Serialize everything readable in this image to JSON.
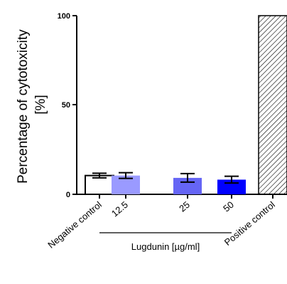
{
  "chart_data": {
    "type": "bar",
    "ylabel_lines": [
      "Percentage of cytotoxicity",
      "[%]"
    ],
    "ylim": [
      0,
      100
    ],
    "yticks": [
      "0",
      "50",
      "100"
    ],
    "group_label": "Lugdunin  [µg/ml]",
    "bars": [
      {
        "category": "Negative control",
        "value": 10.5,
        "error": 1.3,
        "fill": "#ffffff",
        "hatch": false
      },
      {
        "category": "12.5",
        "value": 10.5,
        "error": 1.6,
        "fill": "#9a9aff",
        "hatch": false
      },
      {
        "category": "25",
        "value": 9.2,
        "error": 2.4,
        "fill": "#6565f5",
        "hatch": false
      },
      {
        "category": "50",
        "value": 8.2,
        "error": 1.9,
        "fill": "#0000ff",
        "hatch": false
      },
      {
        "category": "Positive control",
        "value": 100,
        "error": 0,
        "fill": "#ffffff",
        "hatch": true
      }
    ],
    "grid": false,
    "legend": "none"
  }
}
